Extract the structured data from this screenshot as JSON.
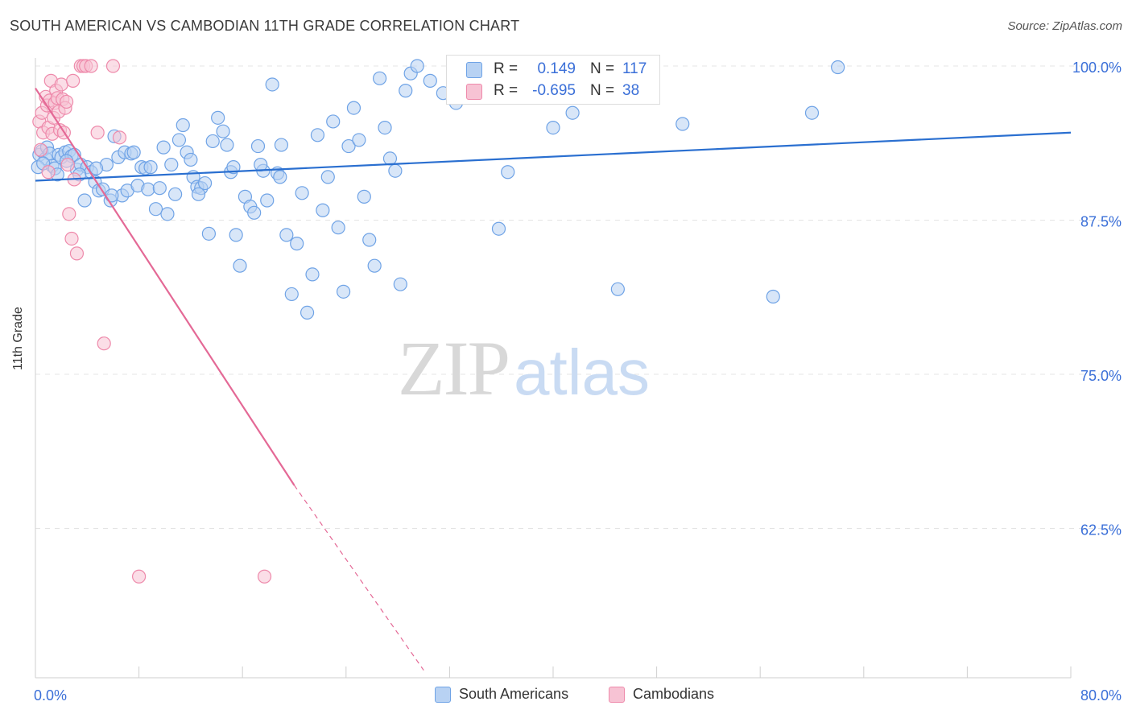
{
  "header": {
    "title": "SOUTH AMERICAN VS CAMBODIAN 11TH GRADE CORRELATION CHART",
    "source": "Source: ZipAtlas.com"
  },
  "watermark": {
    "zip": "ZIP",
    "atlas": "atlas"
  },
  "colors": {
    "blue": "#6fa3e6",
    "blue_fill": "#b8d2f3",
    "blue_line": "#2a6fd0",
    "pink": "#ee8aab",
    "pink_fill": "#f7c3d4",
    "pink_line": "#e46996",
    "tick_label": "#3a6fd8"
  },
  "stats_box": {
    "rows": [
      {
        "r_label": "R =",
        "r_value": "0.149",
        "n_label": "N =",
        "n_value": "117",
        "color": "blue"
      },
      {
        "r_label": "R =",
        "r_value": "-0.695",
        "n_label": "N =",
        "n_value": "38",
        "color": "pink"
      }
    ]
  },
  "legend": {
    "items": [
      {
        "label": "South Americans",
        "color": "blue"
      },
      {
        "label": "Cambodians",
        "color": "pink"
      }
    ]
  },
  "chart_data": {
    "type": "scatter",
    "title": "SOUTH AMERICAN VS CAMBODIAN 11TH GRADE CORRELATION CHART",
    "xlabel": "",
    "ylabel": "11th Grade",
    "xlim": [
      0,
      80
    ],
    "ylim": [
      51,
      101.5
    ],
    "x_tick_labels": [
      "0.0%",
      "80.0%"
    ],
    "y_ticks": [
      62.5,
      75.0,
      87.5,
      100.0
    ],
    "y_tick_labels": [
      "62.5%",
      "75.0%",
      "87.5%",
      "100.0%"
    ],
    "grid": "horizontal dashed",
    "legend_position": "bottom",
    "series": [
      {
        "name": "South Americans",
        "color": "blue",
        "trend": {
          "x": [
            0,
            80
          ],
          "y": [
            90.7,
            94.6
          ]
        },
        "points": [
          [
            0.3,
            92.8
          ],
          [
            0.5,
            93.1
          ],
          [
            0.8,
            92.5
          ],
          [
            0.9,
            93.4
          ],
          [
            1.1,
            92.9
          ],
          [
            1.3,
            91.9
          ],
          [
            1.5,
            91.7
          ],
          [
            1.8,
            92.8
          ],
          [
            2.0,
            92.6
          ],
          [
            2.3,
            93.0
          ],
          [
            2.6,
            93.1
          ],
          [
            2.8,
            92.7
          ],
          [
            3.0,
            92.8
          ],
          [
            3.2,
            91.6
          ],
          [
            3.5,
            92.0
          ],
          [
            3.8,
            89.1
          ],
          [
            4.0,
            91.8
          ],
          [
            4.3,
            91.4
          ],
          [
            4.6,
            90.6
          ],
          [
            4.9,
            89.9
          ],
          [
            5.2,
            90.0
          ],
          [
            5.5,
            92.0
          ],
          [
            5.8,
            89.1
          ],
          [
            6.1,
            94.3
          ],
          [
            6.4,
            92.6
          ],
          [
            6.7,
            89.5
          ],
          [
            6.9,
            93.0
          ],
          [
            7.1,
            89.9
          ],
          [
            7.4,
            92.9
          ],
          [
            7.6,
            93.0
          ],
          [
            7.9,
            90.3
          ],
          [
            8.2,
            91.8
          ],
          [
            8.5,
            91.7
          ],
          [
            8.7,
            90.0
          ],
          [
            8.9,
            91.8
          ],
          [
            9.3,
            88.4
          ],
          [
            9.6,
            90.1
          ],
          [
            9.9,
            93.4
          ],
          [
            10.2,
            88.0
          ],
          [
            10.5,
            92.0
          ],
          [
            10.8,
            89.6
          ],
          [
            11.1,
            94.0
          ],
          [
            11.4,
            95.2
          ],
          [
            11.7,
            93.0
          ],
          [
            12.0,
            92.4
          ],
          [
            12.2,
            91.0
          ],
          [
            12.5,
            90.2
          ],
          [
            12.8,
            90.1
          ],
          [
            13.1,
            90.5
          ],
          [
            13.4,
            86.4
          ],
          [
            13.7,
            93.9
          ],
          [
            14.1,
            95.8
          ],
          [
            14.5,
            94.7
          ],
          [
            14.8,
            93.6
          ],
          [
            15.1,
            91.4
          ],
          [
            15.5,
            86.3
          ],
          [
            15.8,
            83.8
          ],
          [
            16.2,
            89.4
          ],
          [
            16.6,
            88.6
          ],
          [
            16.9,
            88.1
          ],
          [
            17.2,
            93.5
          ],
          [
            17.6,
            91.5
          ],
          [
            17.9,
            89.1
          ],
          [
            18.3,
            98.5
          ],
          [
            18.7,
            91.3
          ],
          [
            19.0,
            93.6
          ],
          [
            19.4,
            86.3
          ],
          [
            19.8,
            81.5
          ],
          [
            20.2,
            85.6
          ],
          [
            20.6,
            89.7
          ],
          [
            21.0,
            80.0
          ],
          [
            21.4,
            83.1
          ],
          [
            21.8,
            94.4
          ],
          [
            22.2,
            88.3
          ],
          [
            22.6,
            91.0
          ],
          [
            23.0,
            95.5
          ],
          [
            23.4,
            86.9
          ],
          [
            23.8,
            81.7
          ],
          [
            24.2,
            93.5
          ],
          [
            24.6,
            96.6
          ],
          [
            25.0,
            94.0
          ],
          [
            25.4,
            89.4
          ],
          [
            25.8,
            85.9
          ],
          [
            26.2,
            83.8
          ],
          [
            26.6,
            99.0
          ],
          [
            27.0,
            95.0
          ],
          [
            27.4,
            92.5
          ],
          [
            27.8,
            91.5
          ],
          [
            28.2,
            82.3
          ],
          [
            28.6,
            98.0
          ],
          [
            29.0,
            99.4
          ],
          [
            29.5,
            100.0
          ],
          [
            30.5,
            98.8
          ],
          [
            31.5,
            97.8
          ],
          [
            32.5,
            97.0
          ],
          [
            33.5,
            97.5
          ],
          [
            34.5,
            99.8
          ],
          [
            35.8,
            86.8
          ],
          [
            36.5,
            91.4
          ],
          [
            40.0,
            95.0
          ],
          [
            41.5,
            96.2
          ],
          [
            45.0,
            81.9
          ],
          [
            50.0,
            95.3
          ],
          [
            57.0,
            81.3
          ],
          [
            60.0,
            96.2
          ],
          [
            62.0,
            99.9
          ],
          [
            0.2,
            91.8
          ],
          [
            0.6,
            92.1
          ],
          [
            1.7,
            91.2
          ],
          [
            2.4,
            92.3
          ],
          [
            3.4,
            91.2
          ],
          [
            4.7,
            91.7
          ],
          [
            5.9,
            89.5
          ],
          [
            12.6,
            89.6
          ],
          [
            15.3,
            91.8
          ],
          [
            17.4,
            92.0
          ],
          [
            18.9,
            91.0
          ]
        ]
      },
      {
        "name": "Cambodians",
        "color": "pink",
        "trend": {
          "x": [
            0,
            20
          ],
          "y": [
            98.2,
            66.0
          ],
          "dashed_to": [
            30,
            51
          ]
        },
        "points": [
          [
            0.3,
            95.5
          ],
          [
            0.5,
            96.2
          ],
          [
            0.6,
            94.6
          ],
          [
            0.8,
            97.5
          ],
          [
            0.9,
            96.8
          ],
          [
            1.0,
            95.0
          ],
          [
            1.1,
            97.2
          ],
          [
            1.2,
            98.8
          ],
          [
            1.3,
            94.5
          ],
          [
            1.4,
            95.8
          ],
          [
            1.5,
            97.0
          ],
          [
            1.6,
            98.0
          ],
          [
            1.7,
            97.4
          ],
          [
            1.8,
            96.3
          ],
          [
            1.9,
            94.8
          ],
          [
            2.0,
            98.5
          ],
          [
            2.1,
            97.3
          ],
          [
            2.2,
            94.6
          ],
          [
            2.3,
            96.6
          ],
          [
            2.5,
            92.0
          ],
          [
            2.6,
            88.0
          ],
          [
            2.8,
            86.0
          ],
          [
            3.0,
            90.8
          ],
          [
            3.2,
            84.8
          ],
          [
            3.5,
            100.0
          ],
          [
            3.7,
            100.0
          ],
          [
            3.9,
            100.0
          ],
          [
            4.3,
            100.0
          ],
          [
            4.8,
            94.6
          ],
          [
            5.3,
            77.5
          ],
          [
            6.0,
            100.0
          ],
          [
            6.5,
            94.2
          ],
          [
            8.0,
            58.6
          ],
          [
            17.7,
            58.6
          ],
          [
            0.4,
            93.2
          ],
          [
            1.0,
            91.4
          ],
          [
            2.4,
            97.1
          ],
          [
            2.9,
            98.8
          ]
        ]
      }
    ]
  }
}
